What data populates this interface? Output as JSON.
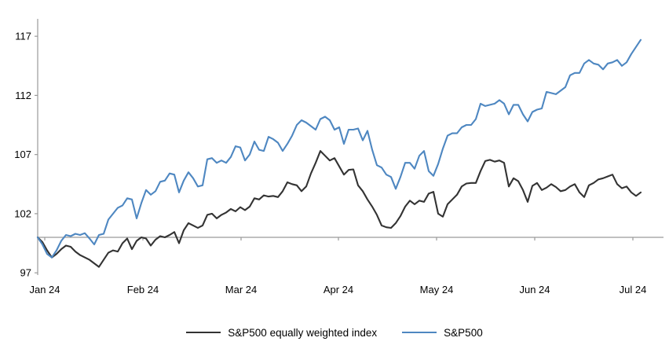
{
  "chart_data": {
    "type": "line",
    "title": "",
    "xlabel": "",
    "ylabel": "",
    "x_tick_labels": [
      "Jan 24",
      "Feb 24",
      "Mar 24",
      "Apr 24",
      "May 24",
      "Jun 24",
      "Jul 24"
    ],
    "y_ticks": [
      97,
      102,
      107,
      112,
      117
    ],
    "ylim": [
      97,
      117
    ],
    "baseline_value": 100,
    "grid": "single horizontal axis line at value 100 with downward month tick marks",
    "legend_position": "bottom-center",
    "axis_color": "#9a9a9a",
    "text_color": "#000000",
    "series": [
      {
        "name": "S&P500 equally weighted index",
        "color": "#333333",
        "values": [
          100.0,
          99.6,
          98.9,
          98.3,
          98.6,
          99.0,
          99.3,
          99.2,
          98.8,
          98.5,
          98.3,
          98.1,
          97.8,
          97.5,
          98.1,
          98.7,
          98.9,
          98.8,
          99.5,
          99.9,
          99.0,
          99.7,
          100.0,
          99.9,
          99.3,
          99.8,
          100.1,
          100.0,
          100.2,
          100.45,
          99.5,
          100.6,
          101.2,
          101.0,
          100.8,
          101.0,
          101.9,
          102.0,
          101.6,
          101.9,
          102.1,
          102.4,
          102.2,
          102.55,
          102.3,
          102.6,
          103.3,
          103.2,
          103.55,
          103.45,
          103.5,
          103.4,
          103.9,
          104.65,
          104.5,
          104.4,
          103.9,
          104.3,
          105.4,
          106.3,
          107.3,
          106.9,
          106.5,
          106.7,
          106.0,
          105.3,
          105.7,
          105.75,
          104.4,
          103.9,
          103.2,
          102.6,
          101.9,
          101.0,
          100.85,
          100.8,
          101.2,
          101.8,
          102.6,
          103.1,
          102.8,
          103.1,
          103.0,
          103.7,
          103.85,
          102.0,
          101.75,
          102.8,
          103.2,
          103.6,
          104.3,
          104.55,
          104.6,
          104.6,
          105.6,
          106.45,
          106.55,
          106.4,
          106.5,
          106.3,
          104.3,
          105.0,
          104.75,
          104.0,
          103.0,
          104.35,
          104.6,
          104.0,
          104.2,
          104.5,
          104.25,
          103.9,
          104.0,
          104.3,
          104.5,
          103.8,
          103.4,
          104.4,
          104.6,
          104.9,
          105.0,
          105.15,
          105.3,
          104.5,
          104.15,
          104.3,
          103.8,
          103.5,
          103.8
        ]
      },
      {
        "name": "S&P500",
        "color": "#4e87c1",
        "values": [
          100.0,
          99.4,
          98.6,
          98.3,
          98.9,
          99.7,
          100.2,
          100.1,
          100.3,
          100.2,
          100.35,
          99.9,
          99.4,
          100.2,
          100.3,
          101.5,
          102.0,
          102.5,
          102.7,
          103.3,
          103.2,
          101.6,
          102.9,
          104.0,
          103.6,
          103.9,
          104.7,
          104.8,
          105.4,
          105.3,
          103.8,
          104.8,
          105.5,
          105.0,
          104.3,
          104.4,
          106.6,
          106.7,
          106.3,
          106.5,
          106.3,
          106.8,
          107.7,
          107.6,
          106.5,
          107.0,
          108.1,
          107.4,
          107.3,
          108.5,
          108.3,
          108.0,
          107.3,
          107.9,
          108.6,
          109.5,
          109.9,
          109.7,
          109.4,
          109.1,
          110.0,
          110.2,
          109.9,
          109.1,
          109.3,
          107.9,
          109.1,
          109.1,
          109.2,
          108.2,
          109.0,
          107.4,
          106.1,
          105.9,
          105.3,
          105.1,
          104.1,
          105.1,
          106.3,
          106.3,
          105.8,
          106.9,
          107.3,
          105.6,
          105.2,
          106.2,
          107.5,
          108.6,
          108.8,
          108.8,
          109.3,
          109.5,
          109.5,
          110.0,
          111.3,
          111.1,
          111.2,
          111.3,
          111.6,
          111.3,
          110.4,
          111.2,
          111.2,
          110.4,
          109.8,
          110.6,
          110.8,
          110.9,
          112.3,
          112.2,
          112.1,
          112.4,
          112.7,
          113.7,
          113.9,
          113.9,
          114.7,
          115.0,
          114.7,
          114.6,
          114.2,
          114.7,
          114.8,
          115.0,
          114.5,
          114.8,
          115.5,
          116.1,
          116.7
        ]
      }
    ]
  },
  "legend": {
    "items": [
      "S&P500 equally weighted index",
      "S&P500"
    ]
  }
}
